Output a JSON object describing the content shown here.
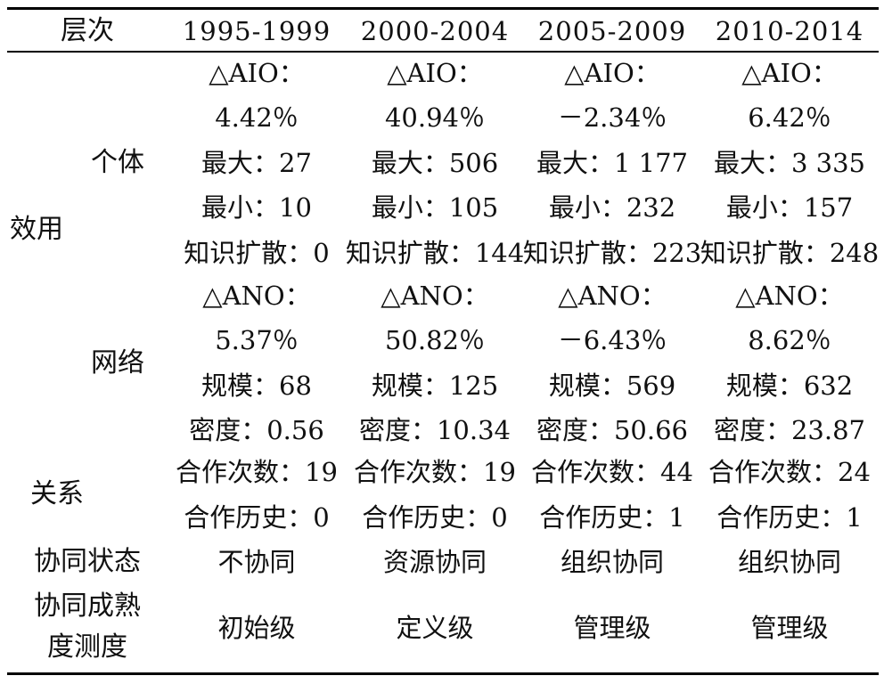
{
  "table": {
    "header": {
      "level_label": "层次",
      "periods": [
        "1995-1999",
        "2000-2004",
        "2005-2009",
        "2010-2014"
      ]
    },
    "row_labels": {
      "utility": "效用",
      "individual": "个体",
      "network": "网络",
      "relation": "关系",
      "synergy_state": "协同状态",
      "maturity_line1": "协同成熟",
      "maturity_line2": "度测度"
    },
    "columns": [
      {
        "aio_label": "△AIO：",
        "aio_value": "4.42％",
        "max": "最大：27",
        "min": "最小：10",
        "diffusion": "知识扩散：0",
        "ano_label": "△ANO：",
        "ano_value": "5.37％",
        "scale": "规模：68",
        "density": "密度：0.56",
        "coop_count": "合作次数：19",
        "coop_history": "合作历史：0",
        "state": "不协同",
        "maturity": "初始级"
      },
      {
        "aio_label": "△AIO：",
        "aio_value": "40.94％",
        "max": "最大：506",
        "min": "最小：105",
        "diffusion": "知识扩散：144",
        "ano_label": "△ANO：",
        "ano_value": "50.82％",
        "scale": "规模：125",
        "density": "密度：10.34",
        "coop_count": "合作次数：19",
        "coop_history": "合作历史：0",
        "state": "资源协同",
        "maturity": "定义级"
      },
      {
        "aio_label": "△AIO：",
        "aio_value": "－2.34％",
        "max": "最大：1 177",
        "min": "最小：232",
        "diffusion": "知识扩散：223",
        "ano_label": "△ANO：",
        "ano_value": "－6.43％",
        "scale": "规模：569",
        "density": "密度：50.66",
        "coop_count": "合作次数：44",
        "coop_history": "合作历史：1",
        "state": "组织协同",
        "maturity": "管理级"
      },
      {
        "aio_label": "△AIO：",
        "aio_value": "6.42％",
        "max": "最大：3 335",
        "min": "最小：157",
        "diffusion": "知识扩散：248",
        "ano_label": "△ANO：",
        "ano_value": "8.62％",
        "scale": "规模：632",
        "density": "密度：23.87",
        "coop_count": "合作次数：24",
        "coop_history": "合作历史：1",
        "state": "组织协同",
        "maturity": "管理级"
      }
    ]
  }
}
